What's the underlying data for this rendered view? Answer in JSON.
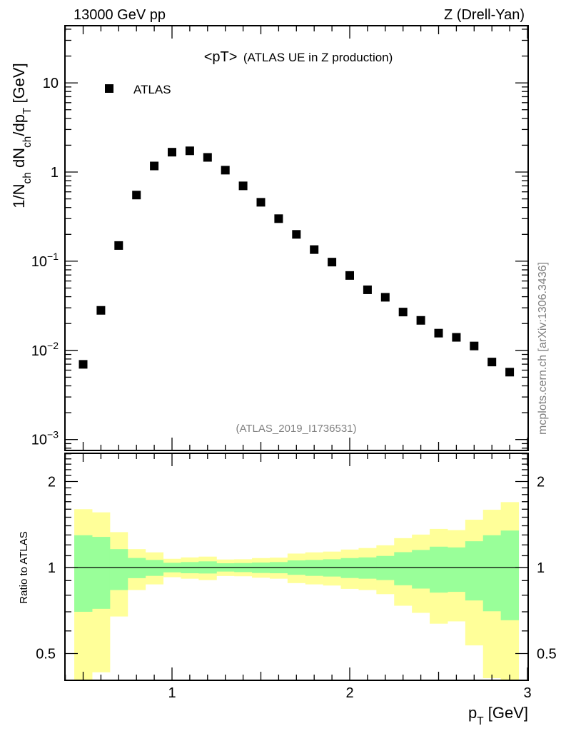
{
  "header": {
    "left": "13000 GeV pp",
    "right": "Z (Drell-Yan)"
  },
  "title": {
    "main": "<pT>",
    "sub": "(ATLAS UE in Z production)"
  },
  "analysis_id": "(ATLAS_2019_I1736531)",
  "side_note": "mcplots.cern.ch [arXiv:1306.3436]",
  "colors": {
    "marker": "#000000",
    "band_inner": "#99ff99",
    "band_outer": "#ffff99",
    "ref_line": "#000000",
    "note": "#808080"
  },
  "chart_data": [
    {
      "type": "scatter",
      "title": "<pT> (ATLAS UE in Z production)",
      "xlabel": "p_{T} [GeV]",
      "ylabel": "1/N_{ch} dN_{ch}/dp_{T} [GeV]",
      "xlim": [
        0.4,
        3.0
      ],
      "ylim": [
        0.00078,
        44.6
      ],
      "yscale": "log",
      "legend": {
        "position": "top-left",
        "entries": [
          "ATLAS"
        ]
      },
      "y_ticks": [
        {
          "value": 10,
          "base": "10",
          "exp": ""
        },
        {
          "value": 1,
          "base": "1",
          "exp": ""
        },
        {
          "value": 0.1,
          "base": "10",
          "exp": "−1"
        },
        {
          "value": 0.01,
          "base": "10",
          "exp": "−2"
        },
        {
          "value": 0.001,
          "base": "10",
          "exp": "−3"
        }
      ],
      "series": [
        {
          "name": "ATLAS",
          "x": [
            0.5,
            0.6,
            0.7,
            0.8,
            0.9,
            1.0,
            1.1,
            1.2,
            1.3,
            1.4,
            1.5,
            1.6,
            1.7,
            1.8,
            1.9,
            2.0,
            2.1,
            2.2,
            2.3,
            2.4,
            2.5,
            2.6,
            2.7,
            2.8,
            2.9
          ],
          "y": [
            0.00697,
            0.0281,
            0.15,
            0.552,
            1.17,
            1.67,
            1.73,
            1.46,
            1.05,
            0.7,
            0.458,
            0.3,
            0.2,
            0.135,
            0.0977,
            0.0692,
            0.0478,
            0.0394,
            0.0269,
            0.0217,
            0.0156,
            0.014,
            0.0112,
            0.0074,
            0.0057
          ]
        }
      ]
    },
    {
      "type": "area",
      "ylabel": "Ratio to ATLAS",
      "xlabel": "p_{T} [GeV]",
      "xlim": [
        0.4,
        3.0
      ],
      "ylim": [
        0.4,
        2.5
      ],
      "yscale": "log",
      "y_ticks": [
        "2",
        "1",
        "0.5"
      ],
      "y_tick_values": [
        2,
        1,
        0.5
      ],
      "x_ticks": [
        "1",
        "2",
        "3"
      ],
      "x_tick_values": [
        1,
        2,
        3
      ],
      "bin_edges": [
        0.45,
        0.55,
        0.65,
        0.75,
        0.85,
        0.95,
        1.05,
        1.15,
        1.25,
        1.35,
        1.45,
        1.55,
        1.65,
        1.75,
        1.85,
        1.95,
        2.05,
        2.15,
        2.25,
        2.35,
        2.45,
        2.55,
        2.65,
        2.75,
        2.85,
        2.95
      ],
      "bands": [
        {
          "name": "outer",
          "upper": [
            1.6,
            1.56,
            1.33,
            1.16,
            1.13,
            1.073,
            1.085,
            1.092,
            1.067,
            1.069,
            1.079,
            1.083,
            1.119,
            1.13,
            1.137,
            1.156,
            1.17,
            1.196,
            1.267,
            1.304,
            1.365,
            1.352,
            1.47,
            1.593,
            1.694
          ],
          "lower": [
            0.35,
            0.43,
            0.674,
            0.834,
            0.873,
            0.925,
            0.914,
            0.904,
            0.934,
            0.932,
            0.921,
            0.914,
            0.882,
            0.873,
            0.865,
            0.842,
            0.834,
            0.807,
            0.735,
            0.694,
            0.636,
            0.648,
            0.534,
            0.41,
            0.35
          ]
        },
        {
          "name": "inner",
          "upper": [
            1.297,
            1.28,
            1.16,
            1.08,
            1.063,
            1.039,
            1.045,
            1.051,
            1.035,
            1.037,
            1.041,
            1.045,
            1.059,
            1.063,
            1.069,
            1.079,
            1.085,
            1.098,
            1.132,
            1.152,
            1.183,
            1.176,
            1.236,
            1.297,
            1.347
          ],
          "lower": [
            0.7,
            0.717,
            0.834,
            0.918,
            0.935,
            0.962,
            0.955,
            0.953,
            0.968,
            0.964,
            0.957,
            0.955,
            0.943,
            0.935,
            0.93,
            0.919,
            0.914,
            0.904,
            0.867,
            0.844,
            0.817,
            0.822,
            0.767,
            0.703,
            0.654
          ]
        }
      ],
      "reference_line": 1
    }
  ]
}
